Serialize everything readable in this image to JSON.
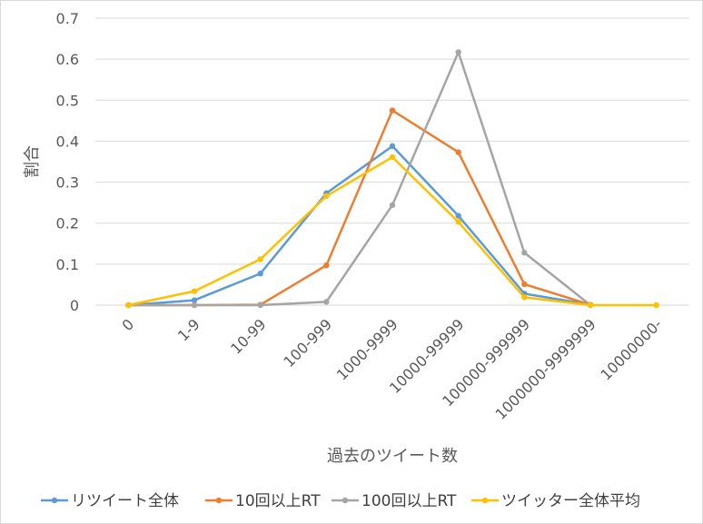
{
  "chart_data": {
    "type": "line",
    "xlabel": "過去のツイート数",
    "ylabel": "割合",
    "categories": [
      "0",
      "1-9",
      "10-99",
      "100-999",
      "1000-9999",
      "10000-99999",
      "100000-999999",
      "1000000-9999999",
      "10000000-"
    ],
    "yticks": [
      "0",
      "0.1",
      "0.2",
      "0.3",
      "0.4",
      "0.5",
      "0.6",
      "0.7"
    ],
    "ylim": [
      0,
      0.7
    ],
    "grid": true,
    "legend_position": "bottom",
    "series": [
      {
        "name": "リツイート全体",
        "color": "#5b9bd5",
        "values": [
          0,
          0.012,
          0.077,
          0.273,
          0.388,
          0.218,
          0.028,
          0.001,
          null
        ]
      },
      {
        "name": "10回以上RT",
        "color": "#ed7d31",
        "values": [
          0,
          0,
          0.001,
          0.097,
          0.475,
          0.373,
          0.051,
          0.001,
          null
        ]
      },
      {
        "name": "100回以上RT",
        "color": "#a5a5a5",
        "values": [
          0,
          0,
          0,
          0.008,
          0.244,
          0.617,
          0.128,
          0,
          null
        ]
      },
      {
        "name": "ツイッター全体平均",
        "color": "#ffc000",
        "values": [
          0,
          0.034,
          0.112,
          0.266,
          0.361,
          0.203,
          0.019,
          0,
          0
        ]
      }
    ]
  }
}
